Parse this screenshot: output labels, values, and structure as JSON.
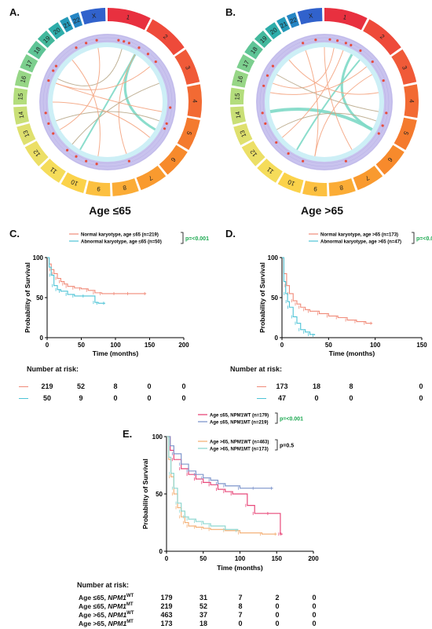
{
  "circos": [
    {
      "letter": "A.",
      "caption": "Age ≤65",
      "chromosomes": [
        "1",
        "2",
        "3",
        "4",
        "5",
        "6",
        "7",
        "8",
        "9",
        "10",
        "11",
        "12",
        "13",
        "14",
        "15",
        "16",
        "17",
        "18",
        "19",
        "20",
        "21",
        "22",
        "X"
      ],
      "chr_colors": [
        "#e8303f",
        "#ee4a3a",
        "#f05a38",
        "#f26a33",
        "#f47a2e",
        "#f78a2c",
        "#f99a2f",
        "#fbac36",
        "#fcc040",
        "#fbd24a",
        "#f5dc5a",
        "#ecdf66",
        "#dfe06e",
        "#c9df76",
        "#b3dd7c",
        "#97d686",
        "#7ccf8e",
        "#5ec496",
        "#43b89c",
        "#2eadaa",
        "#2499b8",
        "#2585c4",
        "#3162cc"
      ]
    },
    {
      "letter": "B.",
      "caption": "Age >65",
      "chromosomes": [
        "1",
        "2",
        "3",
        "4",
        "5",
        "6",
        "7",
        "8",
        "9",
        "10",
        "11",
        "12",
        "13",
        "14",
        "15",
        "16",
        "17",
        "18",
        "19",
        "20",
        "21",
        "22",
        "X"
      ],
      "chr_colors": [
        "#e8303f",
        "#ee4a3a",
        "#f05a38",
        "#f26a33",
        "#f47a2e",
        "#f78a2c",
        "#f99a2f",
        "#fbac36",
        "#fcc040",
        "#fbd24a",
        "#f5dc5a",
        "#ecdf66",
        "#dfe06e",
        "#c9df76",
        "#b3dd7c",
        "#97d686",
        "#7ccf8e",
        "#5ec496",
        "#43b89c",
        "#2eadaa",
        "#2499b8",
        "#2585c4",
        "#3162cc"
      ]
    }
  ],
  "km": [
    {
      "letter": "C.",
      "ylabel": "Probability of Survival",
      "xlabel": "Time (months)",
      "legend": [
        "Normal karyotype, age ≤65 (n=219)",
        "Abnormal karyotype, age ≤65 (n=50)"
      ],
      "pvalue": "p=<0.001",
      "xticks": [
        "0",
        "50",
        "100",
        "150",
        "200"
      ],
      "yticks": [
        "0",
        "50",
        "100"
      ],
      "risk_title": "Number at risk:",
      "risk": [
        [
          "219",
          "52",
          "8",
          "0",
          "0"
        ],
        [
          "50",
          "9",
          "0",
          "0",
          "0"
        ]
      ]
    },
    {
      "letter": "D.",
      "ylabel": "Probability of Survival",
      "xlabel": "Time (months)",
      "legend": [
        "Normal karyotype, age >65 (n=173)",
        "Abnormal karyotype, age >65 (n=47)"
      ],
      "pvalue": "p=<0.001",
      "xticks": [
        "0",
        "50",
        "100",
        "150"
      ],
      "yticks": [
        "0",
        "50",
        "100"
      ],
      "risk_title": "Number at risk:",
      "risk": [
        [
          "173",
          "18",
          "8",
          "0"
        ],
        [
          "47",
          "0",
          "0",
          "0"
        ]
      ]
    },
    {
      "letter": "E.",
      "ylabel": "Probability of Survival",
      "xlabel": "Time (months)",
      "legend": [
        "Age ≤65, NPM1WT (n=179)",
        "Age ≤65, NPM1MT (n=219)",
        "Age >65, NPM1WT (n=463)",
        "Age >65, NPM1MT (n=173)"
      ],
      "pvalue": "p=<0.001",
      "pvalue2": "p=0.5",
      "xticks": [
        "0",
        "50",
        "100",
        "150",
        "200"
      ],
      "yticks": [
        "0",
        "50",
        "100"
      ],
      "risk_title": "Number at risk:",
      "risk_labels": [
        {
          "prefix": "Age ≤65, ",
          "gene": "NPM1",
          "sup": "WT"
        },
        {
          "prefix": "Age ≤65, ",
          "gene": "NPM1",
          "sup": "MT"
        },
        {
          "prefix": "Age >65, ",
          "gene": "NPM1",
          "sup": "WT"
        },
        {
          "prefix": "Age >65, ",
          "gene": "NPM1",
          "sup": "MT"
        }
      ],
      "risk": [
        [
          "179",
          "31",
          "7",
          "2",
          "0"
        ],
        [
          "219",
          "52",
          "8",
          "0",
          "0"
        ],
        [
          "463",
          "37",
          "7",
          "0",
          "0"
        ],
        [
          "173",
          "18",
          "0",
          "0",
          "0"
        ]
      ]
    }
  ],
  "chart_data": [
    {
      "type": "line",
      "panel": "C.",
      "xlabel": "Time (months)",
      "ylabel": "Probability of Survival",
      "xlim": [
        0,
        200
      ],
      "ylim": [
        0,
        100
      ],
      "series": [
        {
          "name": "Normal karyotype, age ≤65 (n=219)",
          "color": "#f08a78",
          "x": [
            0,
            3,
            6,
            10,
            15,
            20,
            25,
            30,
            40,
            50,
            60,
            70,
            80,
            100,
            120,
            145
          ],
          "y": [
            100,
            92,
            85,
            80,
            74,
            70,
            67,
            64,
            62,
            61,
            59,
            56,
            55,
            55,
            55,
            55
          ]
        },
        {
          "name": "Abnormal karyotype, age ≤65 (n=50)",
          "color": "#4cc3d6",
          "x": [
            0,
            3,
            6,
            10,
            15,
            20,
            30,
            40,
            55,
            70,
            75,
            85
          ],
          "y": [
            100,
            88,
            78,
            65,
            60,
            58,
            54,
            52,
            52,
            44,
            43,
            43
          ]
        }
      ]
    },
    {
      "type": "line",
      "panel": "D.",
      "xlabel": "Time (months)",
      "ylabel": "Probability of Survival",
      "xlim": [
        0,
        150
      ],
      "ylim": [
        0,
        100
      ],
      "series": [
        {
          "name": "Normal karyotype, age >65 (n=173)",
          "color": "#f08a78",
          "x": [
            0,
            2,
            5,
            8,
            12,
            16,
            20,
            25,
            30,
            40,
            50,
            60,
            70,
            80,
            90,
            97
          ],
          "y": [
            100,
            80,
            65,
            55,
            46,
            42,
            38,
            35,
            33,
            30,
            27,
            25,
            22,
            20,
            18,
            18
          ]
        },
        {
          "name": "Abnormal karyotype, age >65 (n=47)",
          "color": "#4cc3d6",
          "x": [
            0,
            2,
            4,
            6,
            8,
            12,
            16,
            20,
            25,
            30,
            35
          ],
          "y": [
            100,
            70,
            55,
            45,
            38,
            26,
            18,
            10,
            7,
            4,
            3
          ]
        }
      ]
    },
    {
      "type": "line",
      "panel": "E.",
      "xlabel": "Time (months)",
      "ylabel": "Probability of Survival",
      "xlim": [
        0,
        200
      ],
      "ylim": [
        0,
        100
      ],
      "series": [
        {
          "name": "Age ≤65, NPM1WT (n=179)",
          "color": "#e8497a",
          "x": [
            0,
            5,
            10,
            20,
            30,
            40,
            50,
            60,
            70,
            80,
            90,
            110,
            120,
            140,
            155,
            158
          ],
          "y": [
            100,
            88,
            80,
            72,
            67,
            63,
            60,
            58,
            54,
            52,
            50,
            40,
            33,
            33,
            15,
            15
          ]
        },
        {
          "name": "Age ≤65, NPM1MT (n=219)",
          "color": "#7f96cc",
          "x": [
            0,
            5,
            10,
            20,
            30,
            40,
            50,
            60,
            70,
            80,
            100,
            120,
            145
          ],
          "y": [
            100,
            92,
            85,
            76,
            70,
            67,
            64,
            62,
            59,
            57,
            55,
            55,
            55
          ]
        },
        {
          "name": "Age >65, NPM1WT (n=463)",
          "color": "#f4b27a",
          "x": [
            0,
            3,
            6,
            10,
            15,
            20,
            25,
            30,
            40,
            50,
            60,
            80,
            100,
            130,
            150
          ],
          "y": [
            100,
            80,
            65,
            50,
            38,
            30,
            25,
            22,
            21,
            20,
            19,
            18,
            16,
            15,
            15
          ]
        },
        {
          "name": "Age >65, NPM1MT (n=173)",
          "color": "#8ed7d0",
          "x": [
            0,
            3,
            6,
            10,
            15,
            20,
            25,
            30,
            40,
            50,
            60,
            80,
            97
          ],
          "y": [
            100,
            82,
            68,
            55,
            42,
            35,
            30,
            28,
            26,
            24,
            22,
            19,
            18
          ]
        }
      ]
    }
  ]
}
